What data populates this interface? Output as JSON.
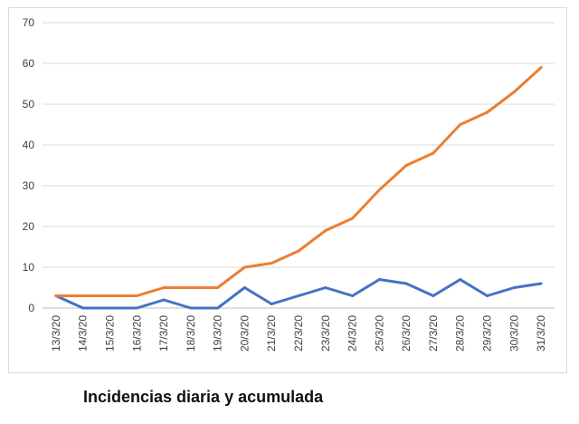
{
  "caption": "Incidencias diaria y acumulada",
  "chart_data": {
    "type": "line",
    "categories": [
      "13/3/20",
      "14/3/20",
      "15/3/20",
      "16/3/20",
      "17/3/20",
      "18/3/20",
      "19/3/20",
      "20/3/20",
      "21/3/20",
      "22/3/20",
      "23/3/20",
      "24/3/20",
      "25/3/20",
      "26/3/20",
      "27/3/20",
      "28/3/20",
      "29/3/20",
      "30/3/20",
      "31/3/20"
    ],
    "ylim": [
      0,
      70
    ],
    "yticks": [
      0,
      10,
      20,
      30,
      40,
      50,
      60,
      70
    ],
    "grid": true,
    "legend": "none",
    "series": [
      {
        "color": "#4472c4",
        "values": [
          3,
          0,
          0,
          0,
          2,
          0,
          0,
          5,
          1,
          3,
          5,
          3,
          7,
          6,
          3,
          7,
          3,
          5,
          6
        ]
      },
      {
        "color": "#ed7d31",
        "values": [
          3,
          3,
          3,
          3,
          5,
          5,
          5,
          10,
          11,
          14,
          19,
          22,
          29,
          35,
          38,
          45,
          48,
          53,
          59
        ]
      }
    ]
  }
}
